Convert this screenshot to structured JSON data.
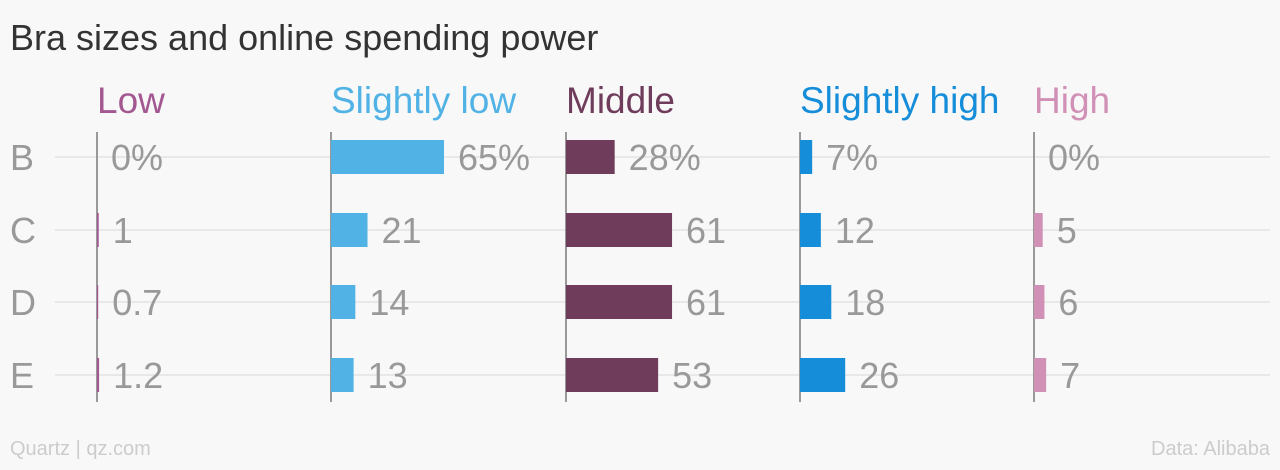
{
  "chart_data": {
    "type": "bar",
    "title": "Bra sizes and online spending power",
    "categories": [
      "B",
      "C",
      "D",
      "E"
    ],
    "series": [
      {
        "name": "Low",
        "color": "#a35891",
        "values": [
          0,
          1,
          0.7,
          1.2
        ],
        "labels": [
          "0%",
          "1",
          "0.7",
          "1.2"
        ]
      },
      {
        "name": "Slightly low",
        "color": "#51b2e5",
        "values": [
          65,
          21,
          14,
          13
        ],
        "labels": [
          "65%",
          "21",
          "14",
          "13"
        ]
      },
      {
        "name": "Middle",
        "color": "#703c5c",
        "values": [
          28,
          61,
          61,
          53
        ],
        "labels": [
          "28%",
          "61",
          "61",
          "53"
        ]
      },
      {
        "name": "Slightly high",
        "color": "#168dd9",
        "values": [
          7,
          12,
          18,
          26
        ],
        "labels": [
          "7%",
          "12",
          "18",
          "26"
        ]
      },
      {
        "name": "High",
        "color": "#d190b6",
        "values": [
          0,
          5,
          6,
          7
        ],
        "labels": [
          "0%",
          "5",
          "6",
          "7"
        ]
      }
    ],
    "xlim": [
      0,
      65
    ],
    "grid": true,
    "legend": "none",
    "source": "Data: Alibaba",
    "credit": "Quartz | qz.com"
  }
}
